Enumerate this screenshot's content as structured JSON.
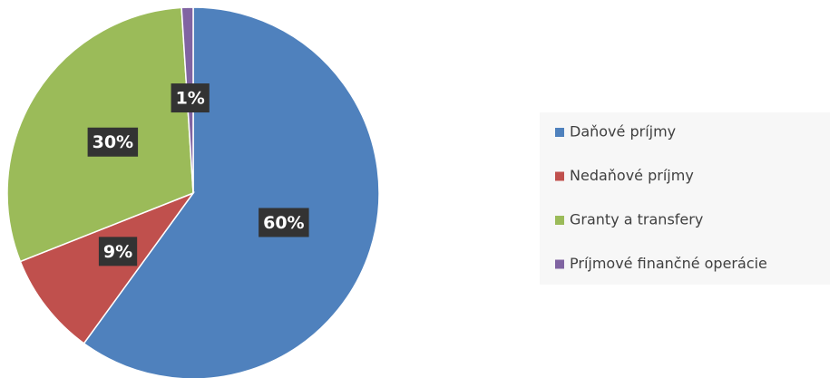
{
  "chart_data": {
    "type": "pie",
    "categories": [
      "Daňové príjmy",
      "Nedaňové príjmy",
      "Granty a transfery",
      "Príjmové finančné operácie"
    ],
    "values": [
      60,
      9,
      30,
      1
    ],
    "value_labels": [
      "60%",
      "9%",
      "30%",
      "1%"
    ],
    "colors": [
      "#4f81bd",
      "#c0504d",
      "#9bbb59",
      "#8064a2"
    ],
    "legend": "right"
  }
}
